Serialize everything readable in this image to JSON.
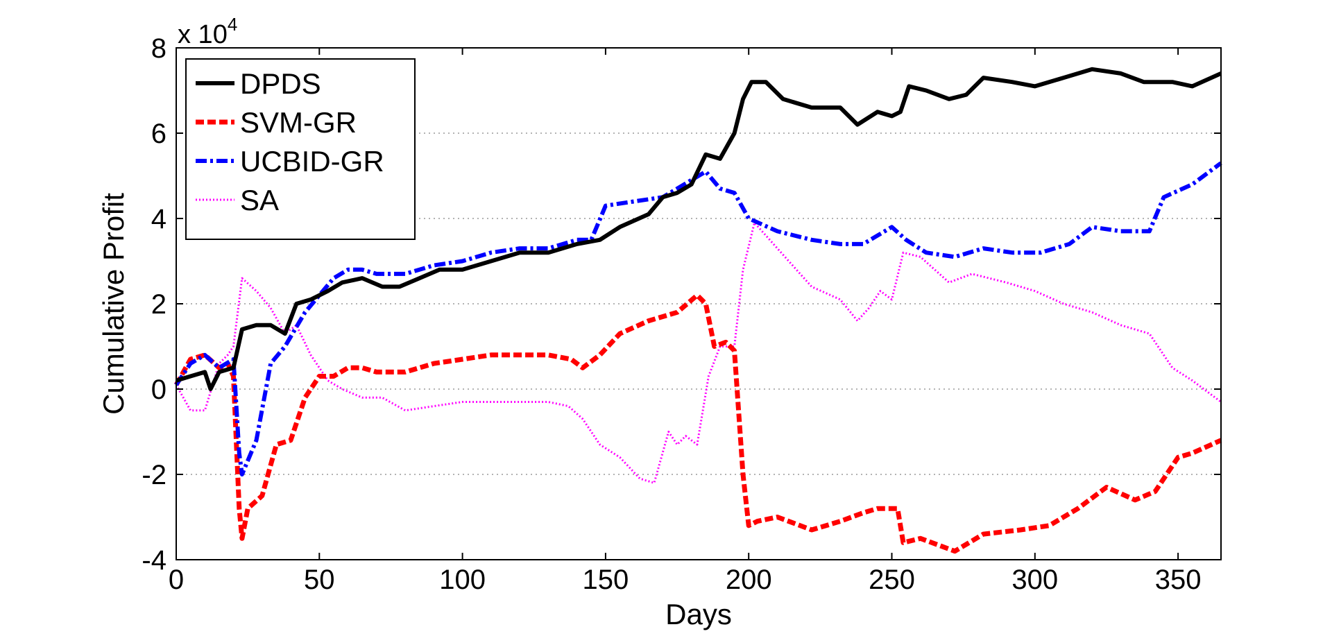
{
  "chart_data": {
    "type": "line",
    "title": "",
    "xlabel": "Days",
    "ylabel": "Cumulative Profit",
    "xlim": [
      0,
      365
    ],
    "ylim": [
      -4,
      8
    ],
    "y_multiplier": {
      "base": "x 10",
      "exponent": "4"
    },
    "xticks": [
      "0",
      "50",
      "100",
      "150",
      "200",
      "250",
      "300",
      "350"
    ],
    "xtick_values": [
      0,
      50,
      100,
      150,
      200,
      250,
      300,
      350
    ],
    "yticks": [
      "-4",
      "-2",
      "0",
      "2",
      "4",
      "6",
      "8"
    ],
    "ytick_values": [
      -4,
      -2,
      0,
      2,
      4,
      6,
      8
    ],
    "grid": "horizontal dotted",
    "legend_position": "top-left",
    "series": [
      {
        "name": "DPDS",
        "color": "#000000",
        "style": "solid",
        "x": [
          0,
          5,
          10,
          12,
          15,
          20,
          23,
          28,
          33,
          38,
          42,
          47,
          53,
          58,
          65,
          72,
          78,
          85,
          92,
          100,
          110,
          120,
          130,
          140,
          148,
          155,
          165,
          170,
          175,
          180,
          185,
          190,
          195,
          198,
          201,
          206,
          212,
          222,
          232,
          238,
          245,
          250,
          253,
          256,
          262,
          270,
          276,
          282,
          292,
          300,
          310,
          320,
          330,
          338,
          348,
          355,
          365
        ],
        "y": [
          0.2,
          0.3,
          0.4,
          0.0,
          0.4,
          0.5,
          1.4,
          1.5,
          1.5,
          1.3,
          2.0,
          2.1,
          2.3,
          2.5,
          2.6,
          2.4,
          2.4,
          2.6,
          2.8,
          2.8,
          3.0,
          3.2,
          3.2,
          3.4,
          3.5,
          3.8,
          4.1,
          4.5,
          4.6,
          4.8,
          5.5,
          5.4,
          6.0,
          6.8,
          7.2,
          7.2,
          6.8,
          6.6,
          6.6,
          6.2,
          6.5,
          6.4,
          6.5,
          7.1,
          7.0,
          6.8,
          6.9,
          7.3,
          7.2,
          7.1,
          7.3,
          7.5,
          7.4,
          7.2,
          7.2,
          7.1,
          7.4
        ]
      },
      {
        "name": "SVM-GR",
        "color": "#ff0000",
        "style": "dashed",
        "x": [
          0,
          5,
          10,
          15,
          18,
          20,
          22,
          23,
          25,
          30,
          35,
          40,
          45,
          50,
          55,
          60,
          65,
          70,
          80,
          90,
          100,
          110,
          120,
          130,
          138,
          142,
          148,
          155,
          165,
          175,
          182,
          185,
          188,
          192,
          195,
          198,
          200,
          203,
          210,
          222,
          232,
          240,
          245,
          252,
          254,
          260,
          272,
          282,
          295,
          305,
          315,
          325,
          335,
          342,
          350,
          355,
          365
        ],
        "y": [
          0.1,
          0.7,
          0.8,
          0.5,
          0.6,
          0.3,
          -2.8,
          -3.5,
          -2.8,
          -2.5,
          -1.3,
          -1.2,
          -0.2,
          0.3,
          0.3,
          0.5,
          0.5,
          0.4,
          0.4,
          0.6,
          0.7,
          0.8,
          0.8,
          0.8,
          0.7,
          0.5,
          0.8,
          1.3,
          1.6,
          1.8,
          2.2,
          2.0,
          1.0,
          1.1,
          0.9,
          -2.0,
          -3.2,
          -3.1,
          -3.0,
          -3.3,
          -3.1,
          -2.9,
          -2.8,
          -2.8,
          -3.6,
          -3.5,
          -3.8,
          -3.4,
          -3.3,
          -3.2,
          -2.8,
          -2.3,
          -2.6,
          -2.4,
          -1.6,
          -1.5,
          -1.2
        ]
      },
      {
        "name": "UCBID-GR",
        "color": "#0000ff",
        "style": "dashdot",
        "x": [
          0,
          5,
          10,
          15,
          20,
          22,
          23,
          28,
          33,
          38,
          45,
          50,
          55,
          60,
          65,
          70,
          80,
          90,
          100,
          110,
          120,
          130,
          140,
          145,
          150,
          160,
          170,
          180,
          185,
          190,
          195,
          200,
          210,
          222,
          232,
          240,
          245,
          250,
          255,
          262,
          272,
          282,
          292,
          302,
          312,
          320,
          330,
          340,
          345,
          355,
          365
        ],
        "y": [
          0.1,
          0.6,
          0.8,
          0.5,
          0.7,
          -1.5,
          -2.0,
          -1.2,
          0.6,
          1.0,
          1.8,
          2.2,
          2.6,
          2.8,
          2.8,
          2.7,
          2.7,
          2.9,
          3.0,
          3.2,
          3.3,
          3.3,
          3.5,
          3.5,
          4.3,
          4.4,
          4.5,
          4.9,
          5.1,
          4.7,
          4.6,
          4.0,
          3.7,
          3.5,
          3.4,
          3.4,
          3.6,
          3.8,
          3.5,
          3.2,
          3.1,
          3.3,
          3.2,
          3.2,
          3.4,
          3.8,
          3.7,
          3.7,
          4.5,
          4.8,
          5.3
        ]
      },
      {
        "name": "SA",
        "color": "#ff00ff",
        "style": "dotted",
        "x": [
          0,
          5,
          10,
          15,
          18,
          20,
          23,
          28,
          33,
          38,
          42,
          47,
          53,
          58,
          65,
          72,
          80,
          90,
          100,
          110,
          120,
          130,
          137,
          142,
          148,
          155,
          162,
          167,
          172,
          175,
          178,
          182,
          186,
          190,
          195,
          198,
          202,
          210,
          222,
          232,
          238,
          242,
          246,
          250,
          254,
          260,
          270,
          278,
          290,
          300,
          310,
          320,
          330,
          340,
          348,
          355,
          365
        ],
        "y": [
          0.1,
          -0.5,
          -0.5,
          0.6,
          0.8,
          1.0,
          2.6,
          2.3,
          1.9,
          1.3,
          1.5,
          0.8,
          0.2,
          0.0,
          -0.2,
          -0.2,
          -0.5,
          -0.4,
          -0.3,
          -0.3,
          -0.3,
          -0.3,
          -0.4,
          -0.7,
          -1.3,
          -1.6,
          -2.1,
          -2.2,
          -1.0,
          -1.3,
          -1.1,
          -1.3,
          0.3,
          1.0,
          1.0,
          2.8,
          3.9,
          3.3,
          2.4,
          2.1,
          1.6,
          1.9,
          2.3,
          2.1,
          3.2,
          3.1,
          2.5,
          2.7,
          2.5,
          2.3,
          2.0,
          1.8,
          1.5,
          1.3,
          0.5,
          0.2,
          -0.3
        ]
      }
    ]
  }
}
